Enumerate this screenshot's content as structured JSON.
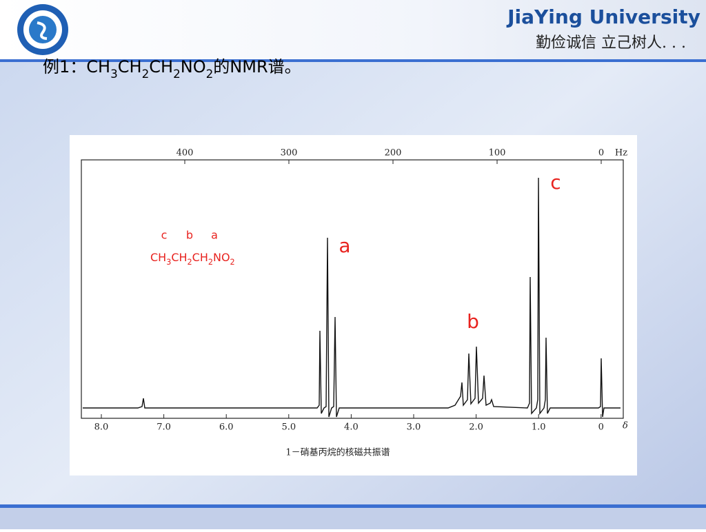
{
  "header": {
    "university": "JiaYing University",
    "motto": "勤俭诚信  立己树人. . ."
  },
  "title": {
    "parts": [
      "例1：CH",
      "3",
      "CH",
      "2",
      "CH",
      "2",
      "NO",
      "2",
      "的NMR谱。"
    ]
  },
  "figure": {
    "hz_ticks": [
      "400",
      "300",
      "200",
      "100",
      "0"
    ],
    "hz_unit": "Hz",
    "ppm_ticks": [
      "8.0",
      "7.0",
      "6.0",
      "5.0",
      "4.0",
      "3.0",
      "2.0",
      "1.0",
      "0"
    ],
    "ppm_unit": "δ",
    "caption": "1－硝基丙烷的核磁共振谱",
    "inset_labels": [
      "c",
      "b",
      "a"
    ],
    "inset_formula": [
      "CH",
      "3",
      "CH",
      "2",
      "CH",
      "2",
      "NO",
      "2"
    ],
    "peak_labels": [
      "a",
      "b",
      "c"
    ]
  }
}
